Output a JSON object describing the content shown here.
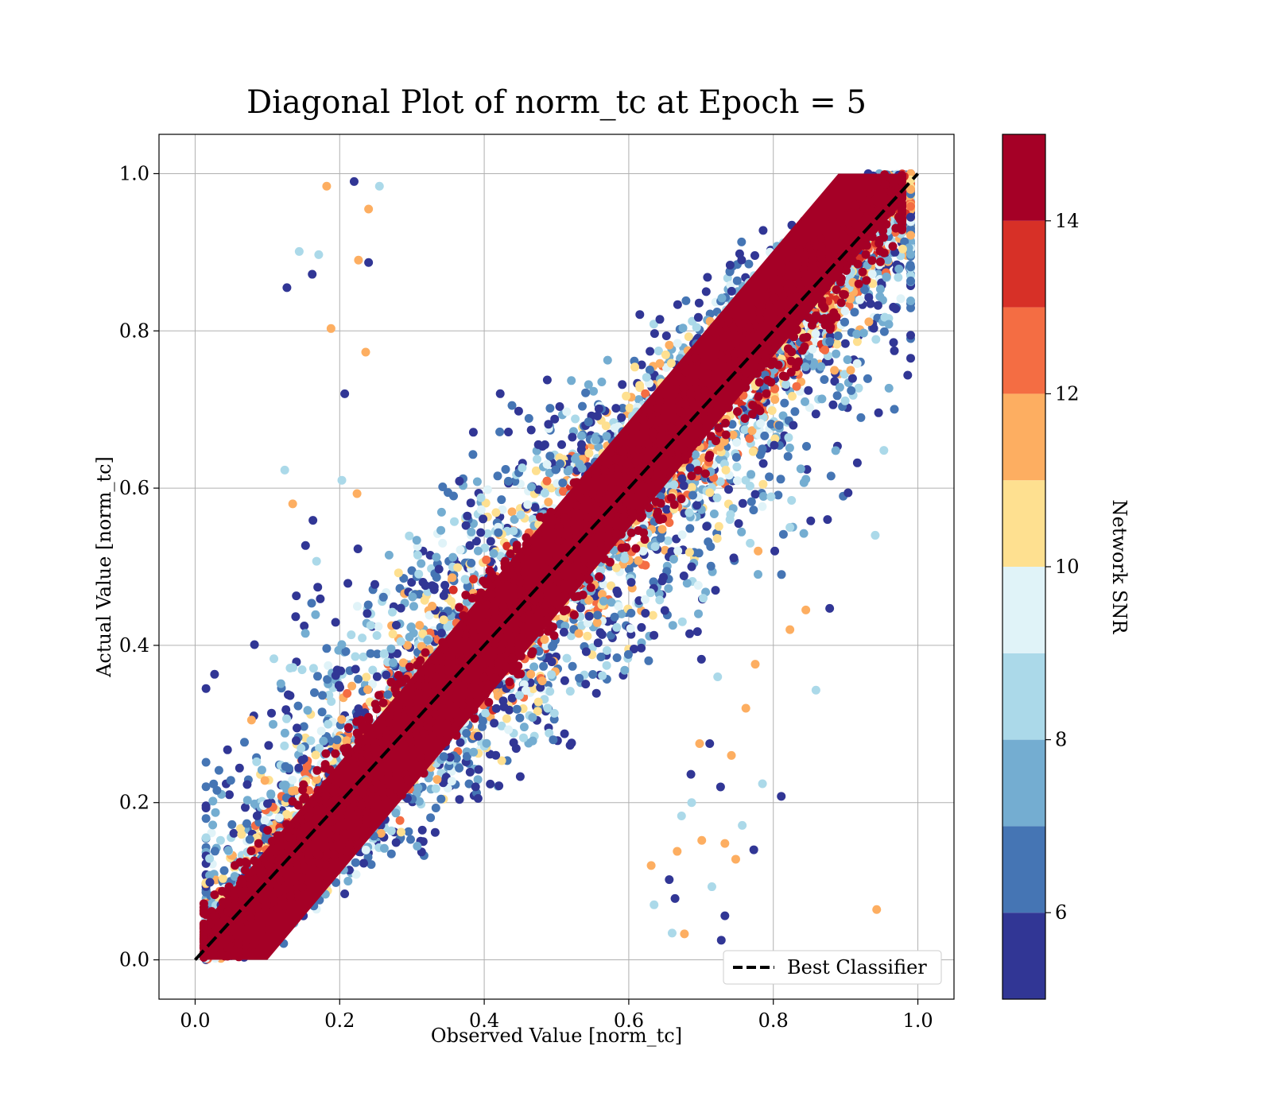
{
  "chart_data": {
    "type": "scatter",
    "title": "Diagonal Plot of norm_tc at Epoch = 5",
    "xlabel": "Observed Value [norm_tc]",
    "ylabel": "Actual Value [norm_tc]",
    "xlim": [
      -0.05,
      1.05
    ],
    "ylim": [
      -0.05,
      1.05
    ],
    "xticks": [
      "0.0",
      "0.2",
      "0.4",
      "0.6",
      "0.8",
      "1.0"
    ],
    "yticks": [
      "0.0",
      "0.2",
      "0.4",
      "0.6",
      "0.8",
      "1.0"
    ],
    "grid": true,
    "legend": {
      "placement": "lower-right",
      "entries": [
        {
          "label": "Best Classifier",
          "style": "dashed",
          "color": "#000000"
        }
      ]
    },
    "reference_line": {
      "name": "Best Classifier",
      "x": [
        0.0,
        1.0
      ],
      "y": [
        0.0,
        1.0
      ]
    },
    "colorbar": {
      "label": "Network SNR",
      "range": [
        5,
        15
      ],
      "ticks": [
        "6",
        "8",
        "10",
        "12",
        "14"
      ],
      "colors": [
        "#313695",
        "#4575b4",
        "#74add1",
        "#abd9e9",
        "#e0f3f8",
        "#fee090",
        "#fdae61",
        "#f46d43",
        "#d73027",
        "#a50026"
      ]
    },
    "series": [
      {
        "points": [
          [
            0.127,
            0.855
          ],
          [
            0.144,
            0.901
          ],
          [
            0.182,
            0.984
          ],
          [
            0.22,
            0.99
          ],
          [
            0.953,
            0.648
          ],
          [
            0.943,
            0.064
          ],
          [
            0.878,
            0.447
          ],
          [
            0.859,
            0.343
          ],
          [
            0.823,
            0.42
          ],
          [
            0.811,
            0.208
          ],
          [
            0.785,
            0.224
          ],
          [
            0.775,
            0.376
          ],
          [
            0.773,
            0.14
          ],
          [
            0.768,
            0.53
          ],
          [
            0.762,
            0.32
          ],
          [
            0.687,
            0.5
          ],
          [
            0.723,
            0.36
          ],
          [
            0.733,
            0.148
          ],
          [
            0.733,
            0.056
          ],
          [
            0.703,
            0.46
          ],
          [
            0.698,
            0.275
          ],
          [
            0.686,
            0.236
          ],
          [
            0.673,
            0.183
          ],
          [
            0.667,
            0.138
          ],
          [
            0.664,
            0.078
          ],
          [
            0.66,
            0.034
          ],
          [
            0.701,
            0.152
          ],
          [
            0.712,
            0.275
          ],
          [
            0.757,
            0.171
          ],
          [
            0.742,
            0.26
          ],
          [
            0.752,
            0.555
          ],
          [
            0.74,
            0.56
          ],
          [
            0.779,
            0.52
          ],
          [
            0.802,
            0.52
          ],
          [
            0.823,
            0.55
          ],
          [
            0.845,
            0.445
          ],
          [
            0.875,
            0.56
          ],
          [
            0.941,
            0.54
          ],
          [
            0.907,
            0.75
          ],
          [
            0.727,
            0.22
          ],
          [
            0.687,
            0.2
          ],
          [
            0.748,
            0.128
          ],
          [
            0.72,
            0.47
          ],
          [
            0.109,
            0.383
          ],
          [
            0.078,
            0.305
          ],
          [
            0.072,
            0.223
          ],
          [
            0.124,
            0.623
          ],
          [
            0.135,
            0.58
          ],
          [
            0.14,
            0.463
          ],
          [
            0.148,
            0.369
          ],
          [
            0.188,
            0.803
          ],
          [
            0.162,
            0.872
          ],
          [
            0.171,
            0.897
          ],
          [
            0.226,
            0.89
          ],
          [
            0.24,
            0.887
          ],
          [
            0.255,
            0.984
          ],
          [
            0.24,
            0.955
          ],
          [
            0.207,
            0.72
          ],
          [
            0.203,
            0.61
          ],
          [
            0.224,
            0.593
          ],
          [
            0.163,
            0.559
          ],
          [
            0.168,
            0.507
          ],
          [
            0.236,
            0.773
          ],
          [
            0.728,
            0.025
          ],
          [
            0.715,
            0.093
          ],
          [
            0.677,
            0.033
          ],
          [
            0.656,
            0.102
          ],
          [
            0.635,
            0.07
          ],
          [
            0.631,
            0.12
          ]
        ]
      }
    ]
  }
}
